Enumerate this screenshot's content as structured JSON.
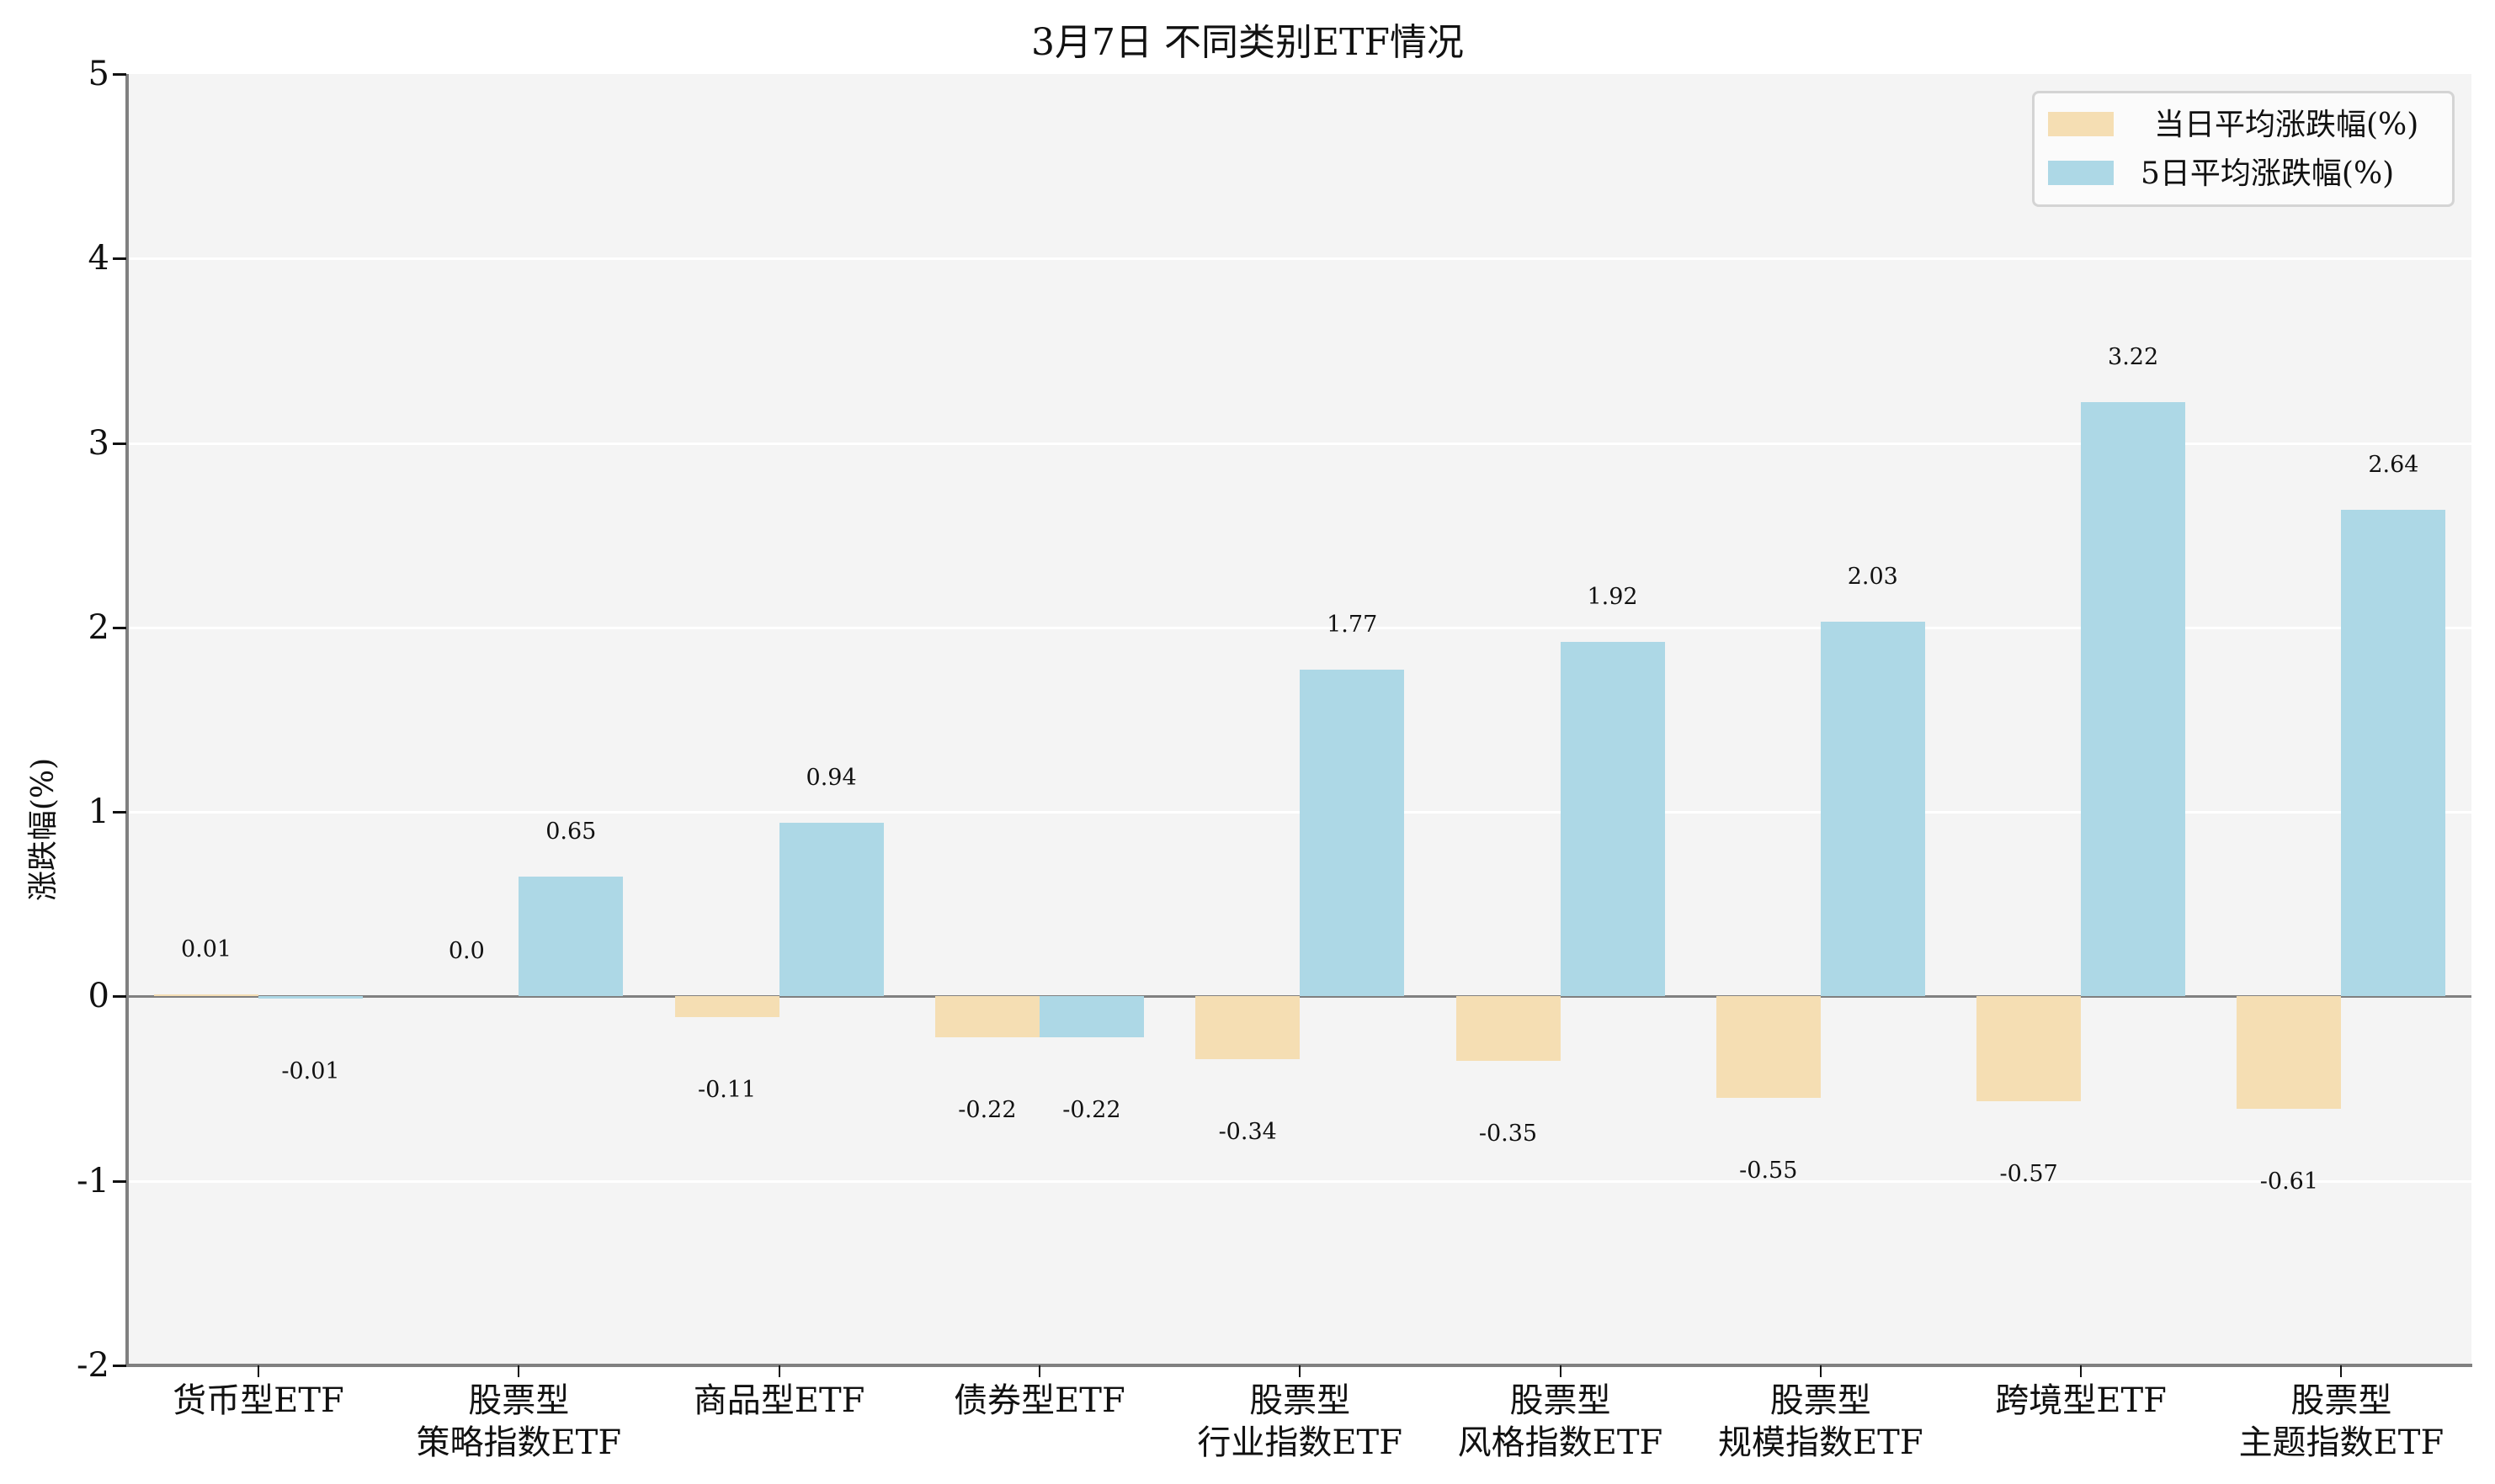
{
  "chart": {
    "title": "3月7日 不同类别ETF情况",
    "ylabel": "涨跌幅(%)",
    "yticks": [
      "5",
      "4",
      "3",
      "2",
      "1",
      "0",
      "-1",
      "-2"
    ],
    "legend": [
      {
        "label": "当日平均涨跌幅(%)",
        "color": "#f5deb3"
      },
      {
        "label": "5日平均涨跌幅(%)",
        "color": "#add8e6"
      }
    ],
    "categories": [
      {
        "line1": "货币型ETF",
        "line2": ""
      },
      {
        "line1": "股票型",
        "line2": "策略指数ETF"
      },
      {
        "line1": "商品型ETF",
        "line2": ""
      },
      {
        "line1": "债券型ETF",
        "line2": ""
      },
      {
        "line1": "股票型",
        "line2": "行业指数ETF"
      },
      {
        "line1": "股票型",
        "line2": "风格指数ETF"
      },
      {
        "line1": "股票型",
        "line2": "规模指数ETF"
      },
      {
        "line1": "跨境型ETF",
        "line2": ""
      },
      {
        "line1": "股票型",
        "line2": "主题指数ETF"
      }
    ],
    "daily_labels": [
      "0.01",
      "0.0",
      "-0.11",
      "-0.22",
      "-0.34",
      "-0.35",
      "-0.55",
      "-0.57",
      "-0.61"
    ],
    "five_day_labels": [
      "-0.01",
      "0.65",
      "0.94",
      "-0.22",
      "1.77",
      "1.92",
      "2.03",
      "3.22",
      "2.64"
    ]
  },
  "chart_data": {
    "type": "bar",
    "title": "3月7日 不同类别ETF情况",
    "xlabel": "",
    "ylabel": "涨跌幅(%)",
    "ylim": [
      -2,
      5
    ],
    "yticks": [
      -2,
      -1,
      0,
      1,
      2,
      3,
      4,
      5
    ],
    "grid": true,
    "legend_position": "upper right",
    "categories": [
      "货币型ETF",
      "股票型 策略指数ETF",
      "商品型ETF",
      "债券型ETF",
      "股票型 行业指数ETF",
      "股票型 风格指数ETF",
      "股票型 规模指数ETF",
      "跨境型ETF",
      "股票型 主题指数ETF"
    ],
    "series": [
      {
        "name": "当日平均涨跌幅(%)",
        "color": "#f5deb3",
        "values": [
          0.01,
          0.0,
          -0.11,
          -0.22,
          -0.34,
          -0.35,
          -0.55,
          -0.57,
          -0.61
        ]
      },
      {
        "name": "5日平均涨跌幅(%)",
        "color": "#add8e6",
        "values": [
          -0.01,
          0.65,
          0.94,
          -0.22,
          1.77,
          1.92,
          2.03,
          3.22,
          2.64
        ]
      }
    ]
  }
}
